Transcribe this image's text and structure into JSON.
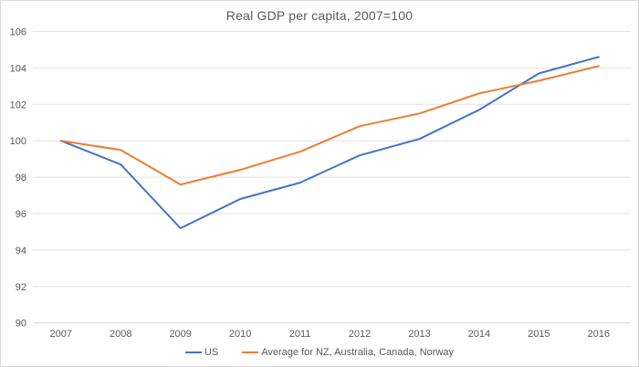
{
  "chart": {
    "title": "Real GDP per capita, 2007=100",
    "colors": {
      "text": "#595959",
      "gridline": "#e3e3e3",
      "axis_line": "#d9d9d9",
      "frame_border": "#d9d9d9",
      "background": "#ffffff",
      "series_us": "#4472c4",
      "series_avg": "#ed7d31"
    }
  },
  "chart_data": {
    "type": "line",
    "title": "Real GDP per capita, 2007=100",
    "categories": [
      "2007",
      "2008",
      "2009",
      "2010",
      "2011",
      "2012",
      "2013",
      "2014",
      "2015",
      "2016"
    ],
    "series": [
      {
        "name": "US",
        "color": "#4472c4",
        "values": [
          100,
          98.7,
          95.2,
          96.8,
          97.7,
          99.2,
          100.1,
          101.7,
          103.7,
          104.6
        ]
      },
      {
        "name": "Average for NZ, Australia, Canada, Norway",
        "color": "#ed7d31",
        "values": [
          100,
          99.5,
          97.6,
          98.4,
          99.4,
          100.8,
          101.5,
          102.6,
          103.3,
          104.1
        ]
      }
    ],
    "xlabel": "",
    "ylabel": "",
    "ylim": [
      90,
      106
    ],
    "ytick_step": 2,
    "grid": true,
    "legend_position": "bottom"
  }
}
